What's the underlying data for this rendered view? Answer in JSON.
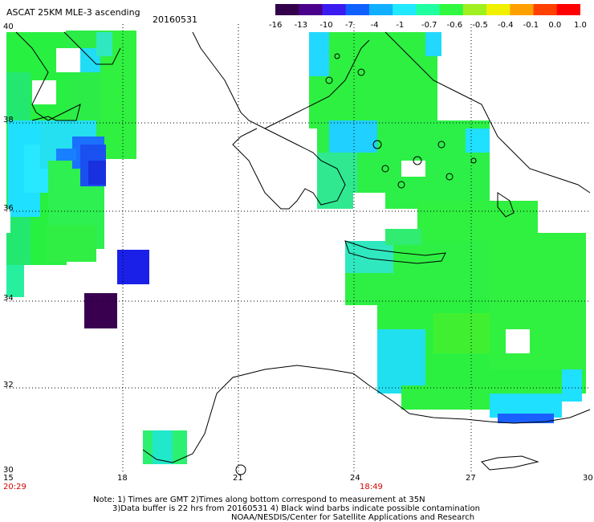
{
  "header": {
    "title": "ASCAT 25KM MLE-3 ascending",
    "date": "20160531"
  },
  "colorbar": {
    "labels": [
      "-16",
      "-13",
      "-10",
      "-7",
      "-4",
      "-1",
      "-0.7",
      "-0.6",
      "-0.5",
      "-0.4",
      "-0.1",
      "0.0",
      "1.0"
    ],
    "colors": [
      "#32004a",
      "#4b008c",
      "#3a1cf0",
      "#1060ff",
      "#10b0ff",
      "#20e8ff",
      "#20ffa0",
      "#30f840",
      "#a0f020",
      "#f0f000",
      "#ffa000",
      "#ff4000",
      "#ff0000"
    ]
  },
  "axes": {
    "lon_labels": [
      "15",
      "18",
      "21",
      "24",
      "27",
      "30"
    ],
    "lat_labels": [
      "40",
      "38",
      "36",
      "34",
      "32",
      "30"
    ],
    "times": [
      "20:29",
      "18:49"
    ]
  },
  "colors": {
    "green": "#28f040",
    "cyan": "#20e0ff",
    "blue": "#1830e0",
    "dark": "#3a0050"
  },
  "notes": {
    "line1": "Note: 1) Times are GMT 2)Times along bottom correspond to measurement at 35N",
    "line2": "3)Data buffer is 22 hrs from 20160531 4) Black wind barbs indicate possible contamination",
    "line3": "NOAA/NESDIS/Center for Satellite Applications and Research"
  }
}
